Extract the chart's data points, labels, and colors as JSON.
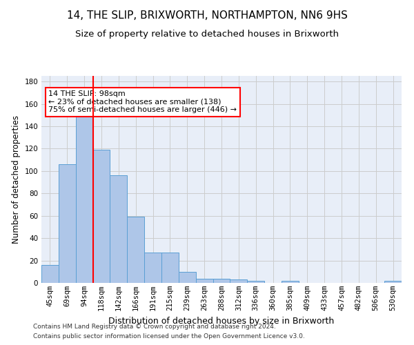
{
  "title1": "14, THE SLIP, BRIXWORTH, NORTHAMPTON, NN6 9HS",
  "title2": "Size of property relative to detached houses in Brixworth",
  "xlabel": "Distribution of detached houses by size in Brixworth",
  "ylabel": "Number of detached properties",
  "categories": [
    "45sqm",
    "69sqm",
    "94sqm",
    "118sqm",
    "142sqm",
    "166sqm",
    "191sqm",
    "215sqm",
    "239sqm",
    "263sqm",
    "288sqm",
    "312sqm",
    "336sqm",
    "360sqm",
    "385sqm",
    "409sqm",
    "433sqm",
    "457sqm",
    "482sqm",
    "506sqm",
    "530sqm"
  ],
  "values": [
    16,
    106,
    149,
    119,
    96,
    59,
    27,
    27,
    10,
    4,
    4,
    3,
    2,
    0,
    2,
    0,
    0,
    0,
    0,
    0,
    2
  ],
  "bar_color": "#aec6e8",
  "bar_edge_color": "#5a9fd4",
  "red_line_index": 2.5,
  "annotation_text": "14 THE SLIP: 98sqm\n← 23% of detached houses are smaller (138)\n75% of semi-detached houses are larger (446) →",
  "annotation_box_color": "white",
  "annotation_box_edge_color": "red",
  "red_line_color": "red",
  "footer1": "Contains HM Land Registry data © Crown copyright and database right 2024.",
  "footer2": "Contains public sector information licensed under the Open Government Licence v3.0.",
  "ylim": [
    0,
    185
  ],
  "grid_color": "#cccccc",
  "bg_color": "#e8eef8",
  "title_fontsize": 11,
  "subtitle_fontsize": 9.5,
  "axis_label_fontsize": 8.5,
  "tick_fontsize": 7.5,
  "footer_fontsize": 6.5,
  "annot_fontsize": 8
}
